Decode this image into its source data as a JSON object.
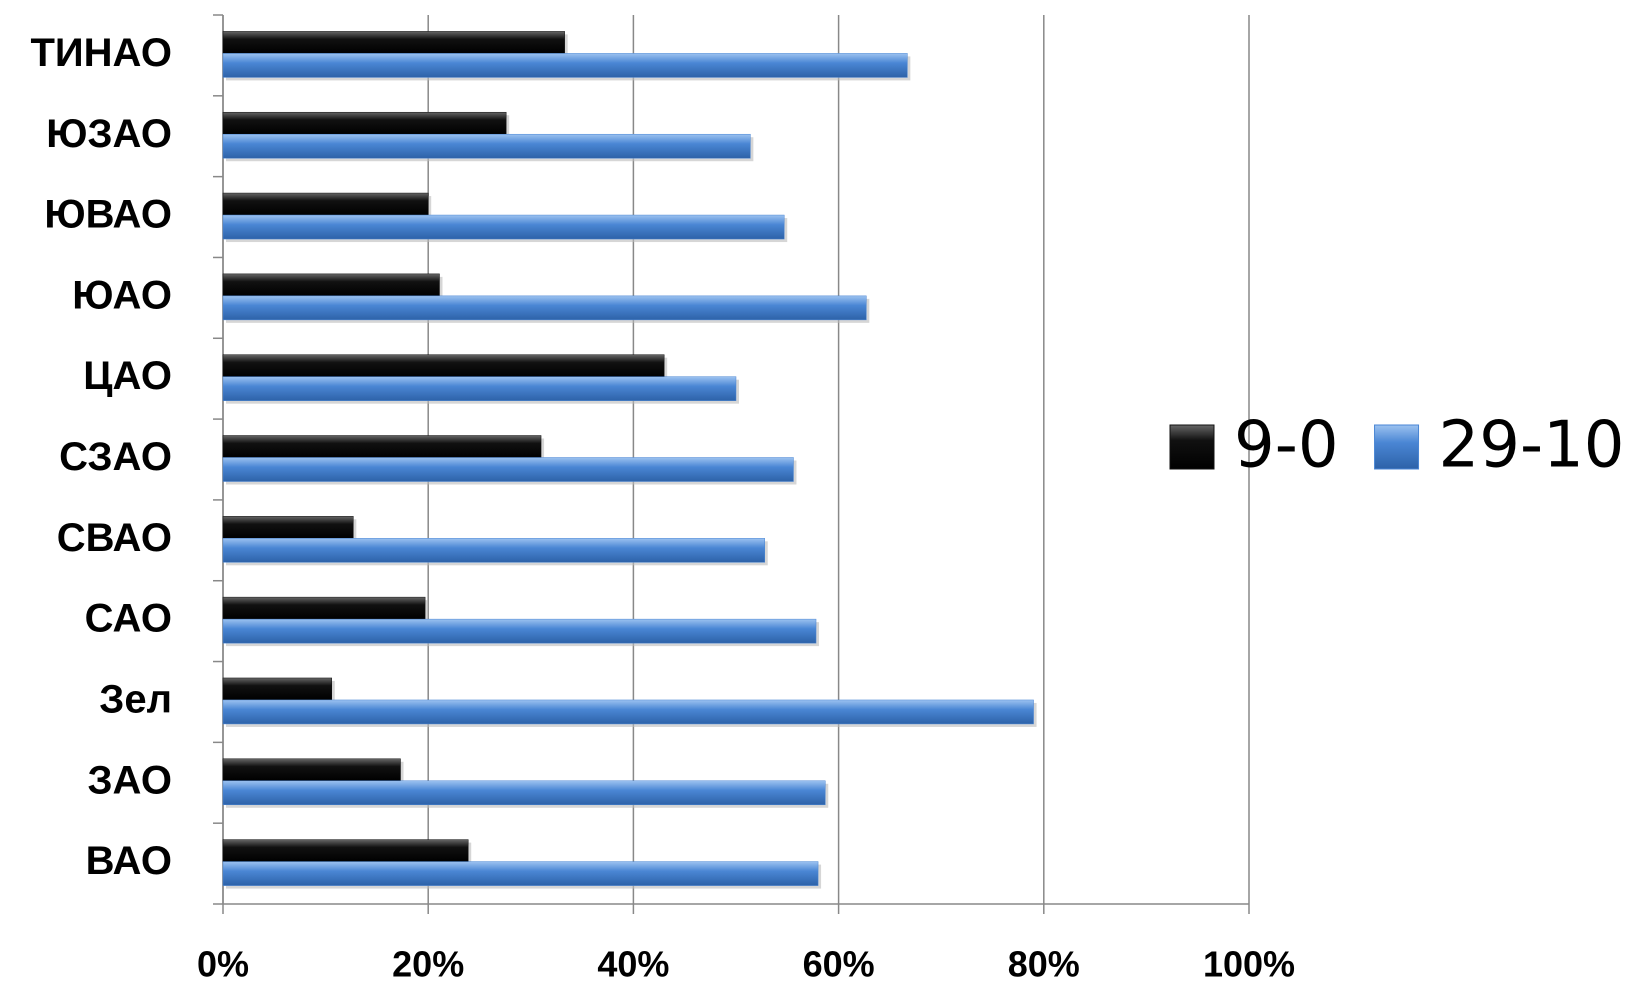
{
  "chart_data": {
    "type": "bar",
    "orientation": "horizontal",
    "categories": [
      "ВАО",
      "ЗАО",
      "Зел",
      "САО",
      "СВАО",
      "СЗАО",
      "ЦАО",
      "ЮАО",
      "ЮВАО",
      "ЮЗАО",
      "ТИНАО"
    ],
    "series": [
      {
        "name": "9-0",
        "color": "#111111",
        "values": [
          23.9,
          17.3,
          10.6,
          19.7,
          12.7,
          31.0,
          43.0,
          21.1,
          20.0,
          27.6,
          33.3
        ]
      },
      {
        "name": "29-10",
        "color": "#4a86d4",
        "values": [
          58.0,
          58.7,
          79.0,
          57.8,
          52.8,
          55.6,
          50.0,
          62.7,
          54.7,
          51.4,
          66.7
        ]
      }
    ],
    "xlim": [
      0,
      100
    ],
    "xticks": [
      {
        "value": 0,
        "label": "0%"
      },
      {
        "value": 20,
        "label": "20%"
      },
      {
        "value": 40,
        "label": "40%"
      },
      {
        "value": 60,
        "label": "60%"
      },
      {
        "value": 80,
        "label": "80%"
      },
      {
        "value": 100,
        "label": "100%"
      }
    ],
    "grid": true,
    "legend": "right"
  }
}
